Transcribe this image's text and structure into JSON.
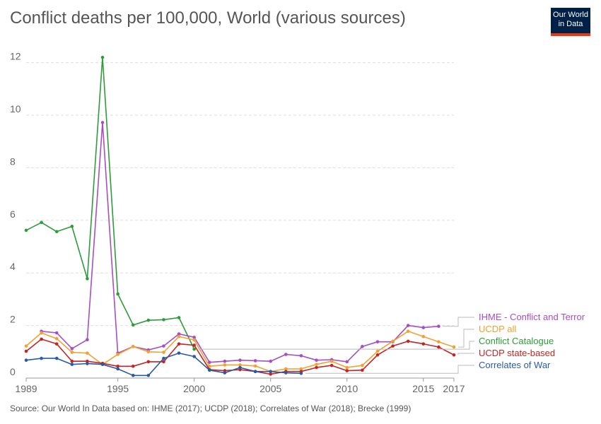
{
  "header": {
    "title": "Conflict deaths per 100,000, World (various sources)",
    "logo_line1": "Our World",
    "logo_line2": "in Data"
  },
  "footer": {
    "source": "Source: Our World In Data based on: IHME (2017); UCDP (2018); Correlates of War (2018); Brecke (1999)"
  },
  "colors": {
    "logo_bg": "#002147",
    "logo_accent": "#e63912"
  },
  "chart_data": {
    "type": "line",
    "title": "Conflict deaths per 100,000, World (various sources)",
    "xlabel": "",
    "ylabel": "",
    "xlim": [
      1989,
      2017
    ],
    "ylim": [
      0,
      12.5
    ],
    "grid": true,
    "legend": "right",
    "x_ticks": [
      1989,
      1995,
      2000,
      2005,
      2010,
      2015,
      2017
    ],
    "x_tick_labels": [
      "1989",
      "1995",
      "2000",
      "2005",
      "2010",
      "2015",
      "2017"
    ],
    "y_ticks": [
      0,
      2,
      4,
      6,
      8,
      10,
      12
    ],
    "y_tick_labels": [
      "0",
      "2",
      "4",
      "6",
      "8",
      "10",
      "12"
    ],
    "series": [
      {
        "name": "Conflict Catalogue",
        "color": "#2e9c3a",
        "x": [
          1989,
          1990,
          1991,
          1992,
          1993,
          1994,
          1995,
          1996,
          1997,
          1998,
          1999,
          2000
        ],
        "y": [
          5.62,
          5.92,
          5.57,
          5.77,
          3.78,
          12.2,
          3.2,
          2.02,
          2.2,
          2.22,
          2.3,
          1.1
        ]
      },
      {
        "name": "IHME - Conflict and Terror",
        "color": "#a64ec2",
        "x": [
          1990,
          1991,
          1992,
          1993,
          1994,
          1995,
          1996,
          1997,
          1998,
          1999,
          2000,
          2001,
          2002,
          2003,
          2004,
          2005,
          2006,
          2007,
          2008,
          2009,
          2010,
          2011,
          2012,
          2013,
          2014,
          2015,
          2016
        ],
        "y": [
          1.78,
          1.72,
          1.12,
          1.46,
          9.72,
          0.95,
          1.2,
          1.07,
          1.22,
          1.68,
          1.55,
          0.6,
          0.64,
          0.68,
          0.66,
          0.64,
          0.9,
          0.85,
          0.68,
          0.7,
          0.62,
          1.2,
          1.38,
          1.38,
          2.0,
          1.92,
          1.97
        ]
      },
      {
        "name": "UCDP all",
        "color": "#f2a12f",
        "x": [
          1989,
          1990,
          1991,
          1992,
          1993,
          1994,
          1995,
          1996,
          1997,
          1998,
          1999,
          2000,
          2001,
          2002,
          2003,
          2004,
          2005,
          2006,
          2007,
          2008,
          2009,
          2010,
          2011,
          2012,
          2013,
          2014,
          2015,
          2016,
          2017
        ],
        "y": [
          1.22,
          1.72,
          1.5,
          0.98,
          0.95,
          0.52,
          0.9,
          1.2,
          1.0,
          0.98,
          1.58,
          1.45,
          0.45,
          0.5,
          0.5,
          0.46,
          0.25,
          0.35,
          0.35,
          0.52,
          0.64,
          0.4,
          0.48,
          1.02,
          1.4,
          1.78,
          1.58,
          1.38,
          1.18
        ]
      },
      {
        "name": "UCDP state-based",
        "color": "#c42424",
        "x": [
          1989,
          1990,
          1991,
          1992,
          1993,
          1994,
          1995,
          1996,
          1997,
          1998,
          1999,
          2000,
          2001,
          2002,
          2003,
          2004,
          2005,
          2006,
          2007,
          2008,
          2009,
          2010,
          2011,
          2012,
          2013,
          2014,
          2015,
          2016,
          2017
        ],
        "y": [
          1.02,
          1.48,
          1.3,
          0.64,
          0.64,
          0.56,
          0.45,
          0.45,
          0.62,
          0.62,
          1.3,
          1.25,
          0.32,
          0.28,
          0.32,
          0.25,
          0.15,
          0.25,
          0.25,
          0.4,
          0.48,
          0.28,
          0.3,
          0.88,
          1.22,
          1.4,
          1.3,
          1.18,
          0.88
        ]
      },
      {
        "name": "Correlates of War",
        "color": "#2a5aa6",
        "x": [
          1989,
          1990,
          1991,
          1992,
          1993,
          1994,
          1995,
          1996,
          1997,
          1998,
          1999,
          2000,
          2001,
          2002,
          2003,
          2004,
          2005,
          2006,
          2007
        ],
        "y": [
          0.68,
          0.75,
          0.75,
          0.52,
          0.55,
          0.52,
          0.35,
          0.1,
          0.1,
          0.75,
          0.95,
          0.82,
          0.3,
          0.2,
          0.4,
          0.25,
          0.25,
          0.2,
          0.18
        ]
      }
    ],
    "legend_order": [
      "IHME - Conflict and Terror",
      "UCDP all",
      "Conflict Catalogue",
      "UCDP state-based",
      "Correlates of War"
    ]
  }
}
